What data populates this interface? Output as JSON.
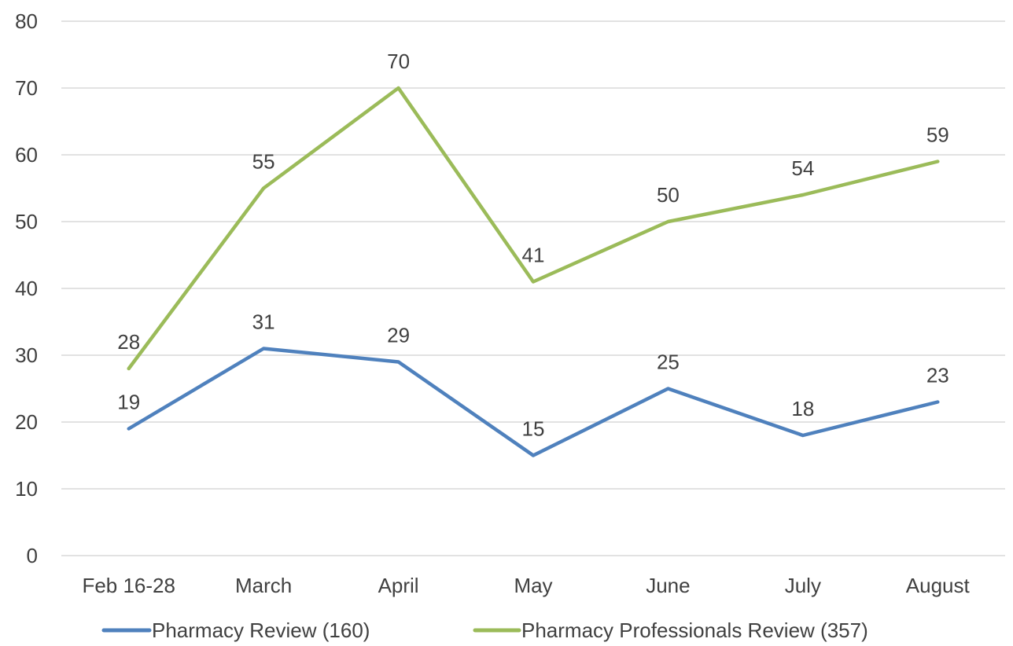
{
  "chart_data": {
    "type": "line",
    "categories": [
      "Feb 16-28",
      "March",
      "April",
      "May",
      "June",
      "July",
      "August"
    ],
    "series": [
      {
        "name": "Pharmacy Review (160)",
        "values": [
          19,
          31,
          29,
          15,
          25,
          18,
          23
        ],
        "color": "#4f81bd"
      },
      {
        "name": "Pharmacy Professionals Review (357)",
        "values": [
          28,
          55,
          70,
          41,
          50,
          54,
          59
        ],
        "color": "#9bbb59"
      }
    ],
    "ylim": [
      0,
      80
    ],
    "yticks": [
      0,
      10,
      20,
      30,
      40,
      50,
      60,
      70,
      80
    ],
    "grid": true,
    "legend_position": "bottom",
    "data_labels": true
  }
}
